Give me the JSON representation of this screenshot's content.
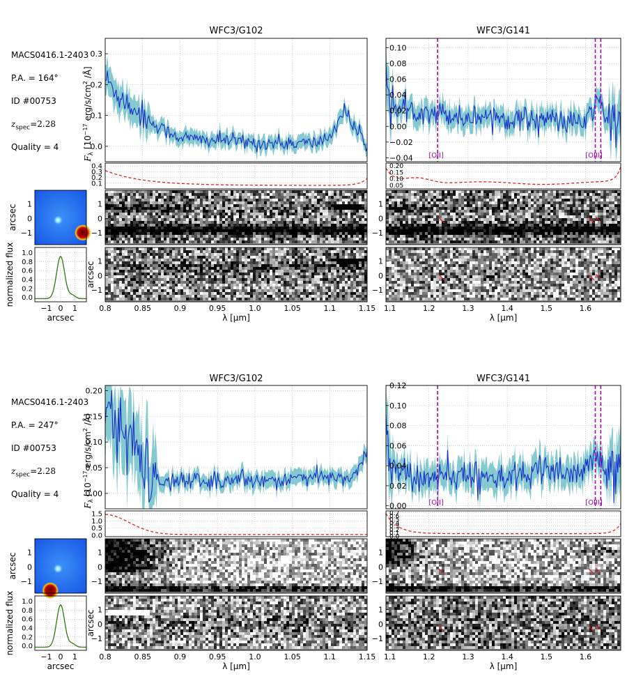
{
  "panels": [
    {
      "info": {
        "field": "MACS0416.1-2403",
        "pa": "P.A. = 164°",
        "id": "ID #00753",
        "z_prefix": "z",
        "z_sub": "spec",
        "z_value": "=2.28",
        "quality": "Quality = 4"
      },
      "g102": {
        "title": "WFC3/G102",
        "ylim": [
          -0.05,
          0.35
        ],
        "yticks": [
          "0.0",
          "0.1",
          "0.2",
          "0.3"
        ],
        "noise": {
          "ylim": [
            0.0,
            0.45
          ],
          "yticks": [
            "0.1",
            "0.2",
            "0.3",
            "0.4"
          ]
        }
      },
      "g141": {
        "title": "WFC3/G141",
        "ylim": [
          -0.045,
          0.112
        ],
        "yticks": [
          "−0.04",
          "−0.02",
          "0.00",
          "0.02",
          "0.04",
          "0.06",
          "0.08",
          "0.10"
        ],
        "noise": {
          "ylim": [
            0.02,
            0.22
          ],
          "yticks": [
            "0.05",
            "0.10",
            "0.15",
            "0.20"
          ]
        },
        "lines": [
          {
            "label": "[OII]",
            "x": 1.222
          },
          {
            "label": "[OIII]",
            "x": 1.625
          },
          {
            "label": "",
            "x": 1.639
          }
        ]
      }
    },
    {
      "info": {
        "field": "MACS0416.1-2403",
        "pa": "P.A. = 247°",
        "id": "ID #00753",
        "z_prefix": "z",
        "z_sub": "spec",
        "z_value": "=2.28",
        "quality": "Quality = 4"
      },
      "g102": {
        "title": "WFC3/G102",
        "ylim": [
          -0.03,
          0.21
        ],
        "yticks": [
          "0.00",
          "0.05",
          "0.10",
          "0.15",
          "0.20"
        ],
        "noise": {
          "ylim": [
            -0.1,
            1.7
          ],
          "yticks": [
            "0.0",
            "0.5",
            "1.0",
            "1.5"
          ]
        }
      },
      "g141": {
        "title": "WFC3/G141",
        "ylim": [
          -0.003,
          0.12
        ],
        "yticks": [
          "0.00",
          "0.02",
          "0.04",
          "0.06",
          "0.08",
          "0.10",
          "0.12"
        ],
        "noise": {
          "ylim": [
            -0.02,
            0.75
          ],
          "yticks": [
            "0.0",
            "0.1",
            "0.2",
            "0.3",
            "0.4",
            "0.5",
            "0.6",
            "0.7"
          ]
        },
        "lines": [
          {
            "label": "[OII]",
            "x": 1.222
          },
          {
            "label": "[OIII]",
            "x": 1.625
          },
          {
            "label": "",
            "x": 1.639
          }
        ]
      }
    }
  ],
  "axes": {
    "flux_label": "F_λ [10^−17 erg/s/cm^2 /Å]",
    "flux_label_main": "Fλ",
    "flux_label_rest": "[10",
    "flux_label_exp": "−17",
    "flux_label_units": "erg/s/cm",
    "flux_label_exp2": "2",
    "flux_label_end": "/Å]",
    "wavelength_label": "λ [μm]",
    "arcsec_label": "arcsec",
    "normflux_label": "normalized flux",
    "g102_xticks": [
      "0.8",
      "0.85",
      "0.9",
      "0.95",
      "1.0",
      "1.05",
      "1.1",
      "1.15"
    ],
    "g141_xticks": [
      "1.1",
      "1.2",
      "1.3",
      "1.4",
      "1.5",
      "1.6"
    ],
    "image_yticks": [
      "1",
      "0",
      "−1"
    ],
    "stamp_xticks": [
      "−1",
      "0",
      "1"
    ],
    "profile_yticks": [
      "0.0",
      "0.2",
      "0.4",
      "0.6",
      "0.8",
      "1.0"
    ]
  },
  "chart_data": [
    {
      "type": "line",
      "title": "WFC3/G102",
      "xlabel": "λ [μm]",
      "ylabel": "F_λ [10^−17 erg/s/cm^2 /Å]",
      "xlim": [
        0.8,
        1.15
      ],
      "ylim": [
        -0.05,
        0.35
      ],
      "grid": true,
      "series": [
        {
          "x": [
            0.8,
            0.82,
            0.84,
            0.86,
            0.88,
            0.9,
            0.93,
            0.96,
            1.0,
            1.04,
            1.08,
            1.1,
            1.12,
            1.13,
            1.15
          ],
          "y": [
            0.22,
            0.16,
            0.12,
            0.08,
            0.05,
            0.03,
            0.02,
            0.02,
            0.01,
            0.01,
            0.01,
            0.03,
            0.12,
            0.07,
            0.0
          ]
        }
      ]
    },
    {
      "type": "line",
      "title": "WFC3/G141",
      "xlabel": "λ [μm]",
      "xlim": [
        1.09,
        1.69
      ],
      "ylim": [
        -0.045,
        0.112
      ],
      "grid": true,
      "series": [
        {
          "x": [
            1.09,
            1.1,
            1.12,
            1.15,
            1.2,
            1.25,
            1.3,
            1.35,
            1.4,
            1.45,
            1.5,
            1.55,
            1.6,
            1.62,
            1.635,
            1.65,
            1.69
          ],
          "y": [
            0.08,
            0.03,
            0.02,
            0.02,
            0.02,
            0.015,
            0.01,
            0.015,
            0.01,
            0.01,
            0.01,
            0.005,
            0.005,
            0.02,
            0.04,
            0.01,
            0.0
          ]
        }
      ]
    },
    {
      "type": "line",
      "title": "WFC3/G102",
      "xlabel": "λ [μm]",
      "xlim": [
        0.8,
        1.15
      ],
      "ylim": [
        -0.03,
        0.21
      ],
      "grid": true,
      "series": [
        {
          "x": [
            0.8,
            0.82,
            0.84,
            0.86,
            0.88,
            0.9,
            0.95,
            1.0,
            1.05,
            1.1,
            1.13,
            1.15
          ],
          "y": [
            0.16,
            0.12,
            0.08,
            0.03,
            0.02,
            0.025,
            0.025,
            0.025,
            0.03,
            0.03,
            0.03,
            0.08
          ]
        }
      ]
    },
    {
      "type": "line",
      "title": "WFC3/G141",
      "xlabel": "λ [μm]",
      "xlim": [
        1.09,
        1.69
      ],
      "ylim": [
        -0.003,
        0.12
      ],
      "grid": true,
      "series": [
        {
          "x": [
            1.09,
            1.1,
            1.15,
            1.2,
            1.25,
            1.3,
            1.35,
            1.4,
            1.45,
            1.5,
            1.55,
            1.6,
            1.635,
            1.65,
            1.69
          ],
          "y": [
            0.09,
            0.04,
            0.03,
            0.025,
            0.03,
            0.03,
            0.03,
            0.03,
            0.03,
            0.035,
            0.03,
            0.035,
            0.05,
            0.03,
            0.04
          ]
        }
      ]
    }
  ]
}
